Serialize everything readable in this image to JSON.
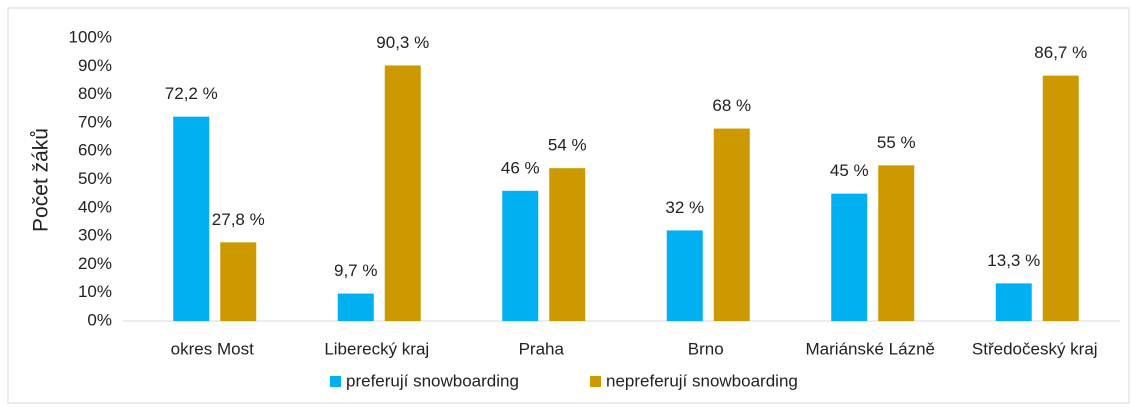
{
  "chart_data": {
    "type": "bar",
    "y_label": "Počet žáků",
    "categories": [
      "okres Most",
      "Liberecký kraj",
      "Praha",
      "Brno",
      "Mariánské Lázně",
      "Středočeský kraj"
    ],
    "series": [
      {
        "name": "preferují snowboarding",
        "color": "#00b0f0",
        "values": [
          72.2,
          9.7,
          46,
          32,
          45,
          13.3
        ],
        "value_labels": [
          "72,2 %",
          "9,7 %",
          "46 %",
          "32 %",
          "45 %",
          "13,3 %"
        ]
      },
      {
        "name": "nepreferují snowboarding",
        "color": "#cc9900",
        "values": [
          27.8,
          90.3,
          54,
          68,
          55,
          86.7
        ],
        "value_labels": [
          "27,8 %",
          "90,3 %",
          "54 %",
          "68 %",
          "55 %",
          "86,7 %"
        ]
      }
    ],
    "ylim": [
      0,
      100
    ],
    "yticks": [
      {
        "value": 0,
        "label": "0%"
      },
      {
        "value": 10,
        "label": "10%"
      },
      {
        "value": 20,
        "label": "20%"
      },
      {
        "value": 30,
        "label": "30%"
      },
      {
        "value": 40,
        "label": "40%"
      },
      {
        "value": 50,
        "label": "50%"
      },
      {
        "value": 60,
        "label": "60%"
      },
      {
        "value": 70,
        "label": "70%"
      },
      {
        "value": 80,
        "label": "80%"
      },
      {
        "value": 90,
        "label": "90%"
      },
      {
        "value": 100,
        "label": "100%"
      }
    ],
    "grid": false,
    "legend": "bottom"
  }
}
